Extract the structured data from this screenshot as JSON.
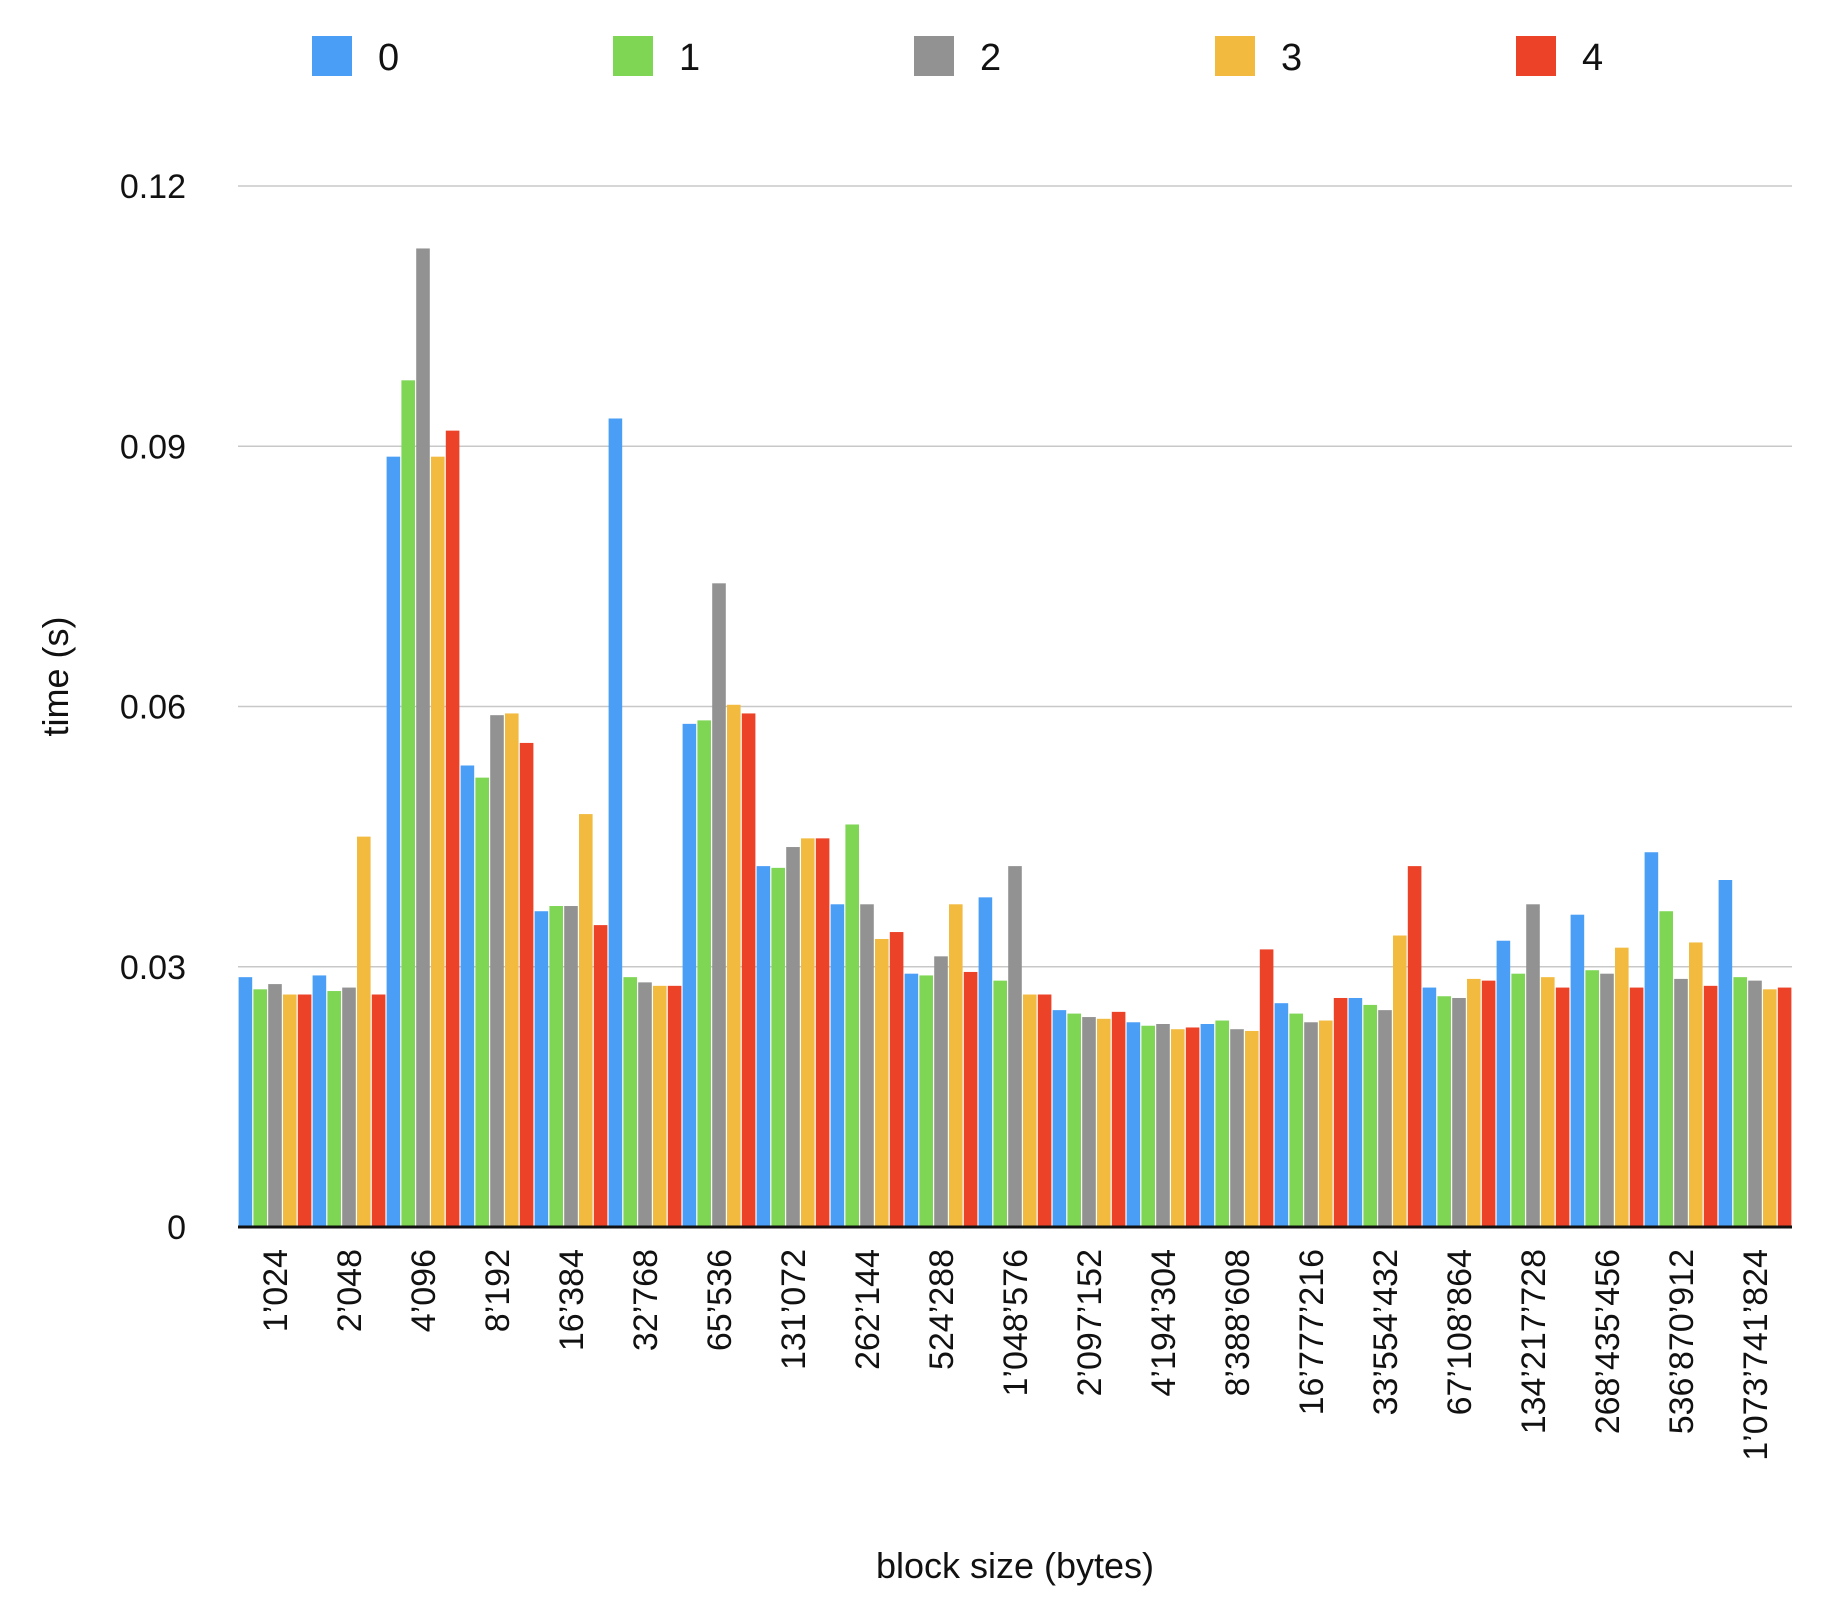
{
  "chart_data": {
    "type": "bar",
    "title": "",
    "xlabel": "block size (bytes)",
    "ylabel": "time (s)",
    "ylim": [
      0,
      0.12
    ],
    "yticks": [
      "0",
      "0.03",
      "0.06",
      "0.09",
      "0.12"
    ],
    "ytick_values": [
      0,
      0.03,
      0.06,
      0.09,
      0.12
    ],
    "grid": true,
    "legend_position": "top",
    "categories": [
      "1’024",
      "2’048",
      "4’096",
      "8’192",
      "16’384",
      "32’768",
      "65’536",
      "131’072",
      "262’144",
      "524’288",
      "1’048’576",
      "2’097’152",
      "4’194’304",
      "8’388’608",
      "16’777’216",
      "33’554’432",
      "67’108’864",
      "134’217’728",
      "268’435’456",
      "536’870’912",
      "1’073’741’824"
    ],
    "series": [
      {
        "name": "0",
        "color": "#4a9ef6",
        "values": [
          0.0288,
          0.029,
          0.0888,
          0.0532,
          0.0364,
          0.0932,
          0.058,
          0.0416,
          0.0372,
          0.0292,
          0.038,
          0.025,
          0.0236,
          0.0234,
          0.0258,
          0.0264,
          0.0276,
          0.033,
          0.036,
          0.0432,
          0.04
        ]
      },
      {
        "name": "1",
        "color": "#7ed654",
        "values": [
          0.0274,
          0.0272,
          0.0976,
          0.0518,
          0.037,
          0.0288,
          0.0584,
          0.0414,
          0.0464,
          0.029,
          0.0284,
          0.0246,
          0.0232,
          0.0238,
          0.0246,
          0.0256,
          0.0266,
          0.0292,
          0.0296,
          0.0364,
          0.0288
        ]
      },
      {
        "name": "2",
        "color": "#929292",
        "values": [
          0.028,
          0.0276,
          0.1128,
          0.059,
          0.037,
          0.0282,
          0.0742,
          0.0438,
          0.0372,
          0.0312,
          0.0416,
          0.0242,
          0.0234,
          0.0228,
          0.0236,
          0.025,
          0.0264,
          0.0372,
          0.0292,
          0.0286,
          0.0284
        ]
      },
      {
        "name": "3",
        "color": "#f2bb40",
        "values": [
          0.0268,
          0.045,
          0.0888,
          0.0592,
          0.0476,
          0.0278,
          0.0602,
          0.0448,
          0.0332,
          0.0372,
          0.0268,
          0.024,
          0.0228,
          0.0226,
          0.0238,
          0.0336,
          0.0286,
          0.0288,
          0.0322,
          0.0328,
          0.0274
        ]
      },
      {
        "name": "4",
        "color": "#eb4228",
        "values": [
          0.0268,
          0.0268,
          0.0918,
          0.0558,
          0.0348,
          0.0278,
          0.0592,
          0.0448,
          0.034,
          0.0294,
          0.0268,
          0.0248,
          0.023,
          0.032,
          0.0264,
          0.0416,
          0.0284,
          0.0276,
          0.0276,
          0.0278,
          0.0276
        ]
      }
    ]
  }
}
